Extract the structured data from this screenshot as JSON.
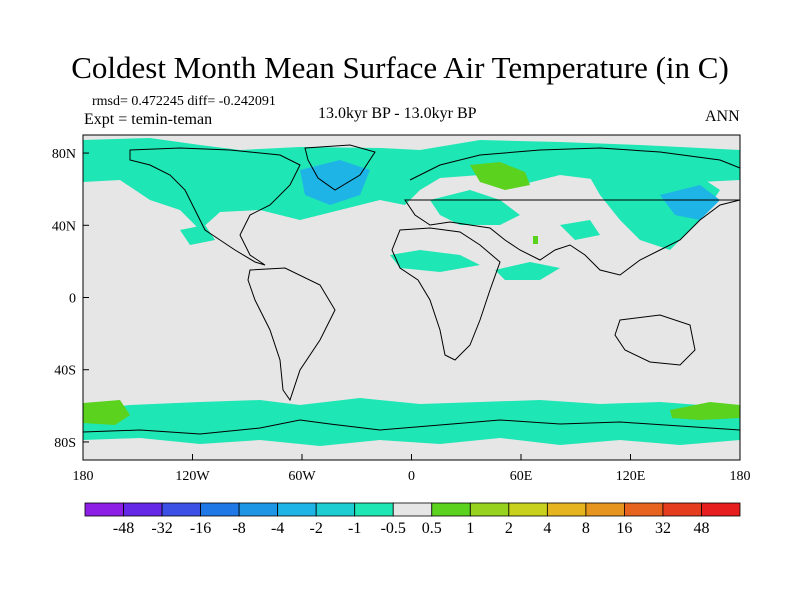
{
  "title": "Coldest Month Mean Surface Air Temperature (in C)",
  "stats": {
    "rmsd_diff": "rmsd= 0.472245 diff= -0.242091",
    "expt": "Expt = temin-teman"
  },
  "center_label": "13.0kyr BP - 13.0kyr BP",
  "season": "ANN",
  "map": {
    "lon_range": [
      -180,
      180
    ],
    "lat_range": [
      -90,
      90
    ],
    "x_ticks": [
      "180",
      "120W",
      "60W",
      "0",
      "60E",
      "120E",
      "180"
    ],
    "y_ticks": [
      "80N",
      "40N",
      "0",
      "40S",
      "80S"
    ],
    "background_color": "#e6e6e6"
  },
  "colorbar": {
    "labels": [
      "-48",
      "-32",
      "-16",
      "-8",
      "-4",
      "-2",
      "-1",
      "-0.5",
      "0.5",
      "1",
      "2",
      "4",
      "8",
      "16",
      "32",
      "48"
    ],
    "colors": [
      "#8c1ee6",
      "#6428e6",
      "#3c50e6",
      "#1e78e6",
      "#1e96e6",
      "#1eb4e6",
      "#1ecdd2",
      "#1ee6b4",
      "#e6e6e6",
      "#5ad21e",
      "#96d21e",
      "#c8d21e",
      "#e6b41e",
      "#e6961e",
      "#e6641e",
      "#e63c1e",
      "#e61e1e"
    ]
  }
}
